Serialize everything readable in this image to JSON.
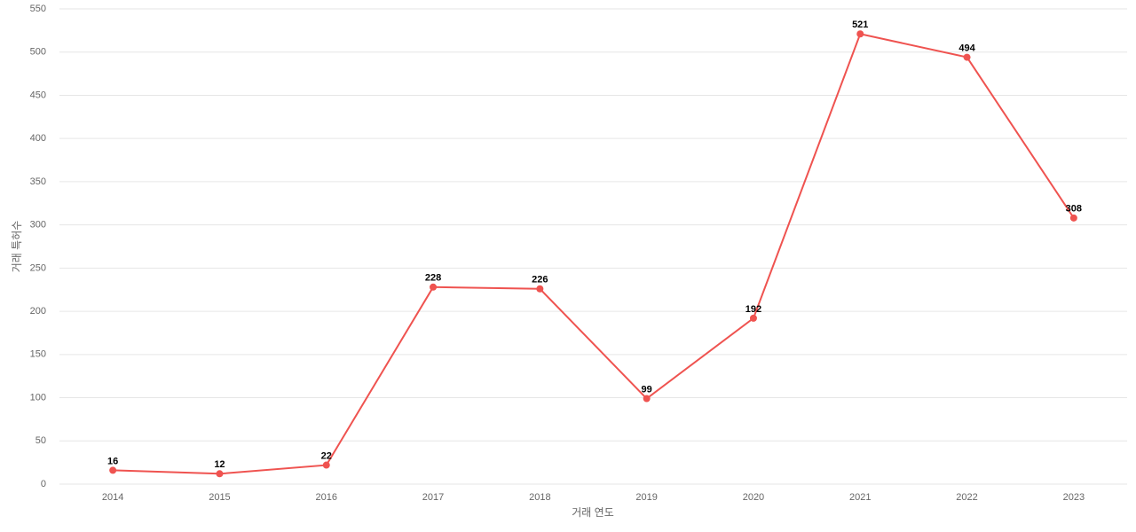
{
  "chart_data": {
    "type": "line",
    "categories": [
      "2014",
      "2015",
      "2016",
      "2017",
      "2018",
      "2019",
      "2020",
      "2021",
      "2022",
      "2023"
    ],
    "values": [
      16,
      12,
      22,
      228,
      226,
      99,
      192,
      521,
      494,
      308
    ],
    "color": "#ef5350",
    "x_label": "거래 연도",
    "y_label": "거래 특허수",
    "ylim": [
      0,
      550
    ],
    "yticks": [
      0,
      50,
      100,
      150,
      200,
      250,
      300,
      350,
      400,
      450,
      500,
      550
    ],
    "grid": true
  }
}
